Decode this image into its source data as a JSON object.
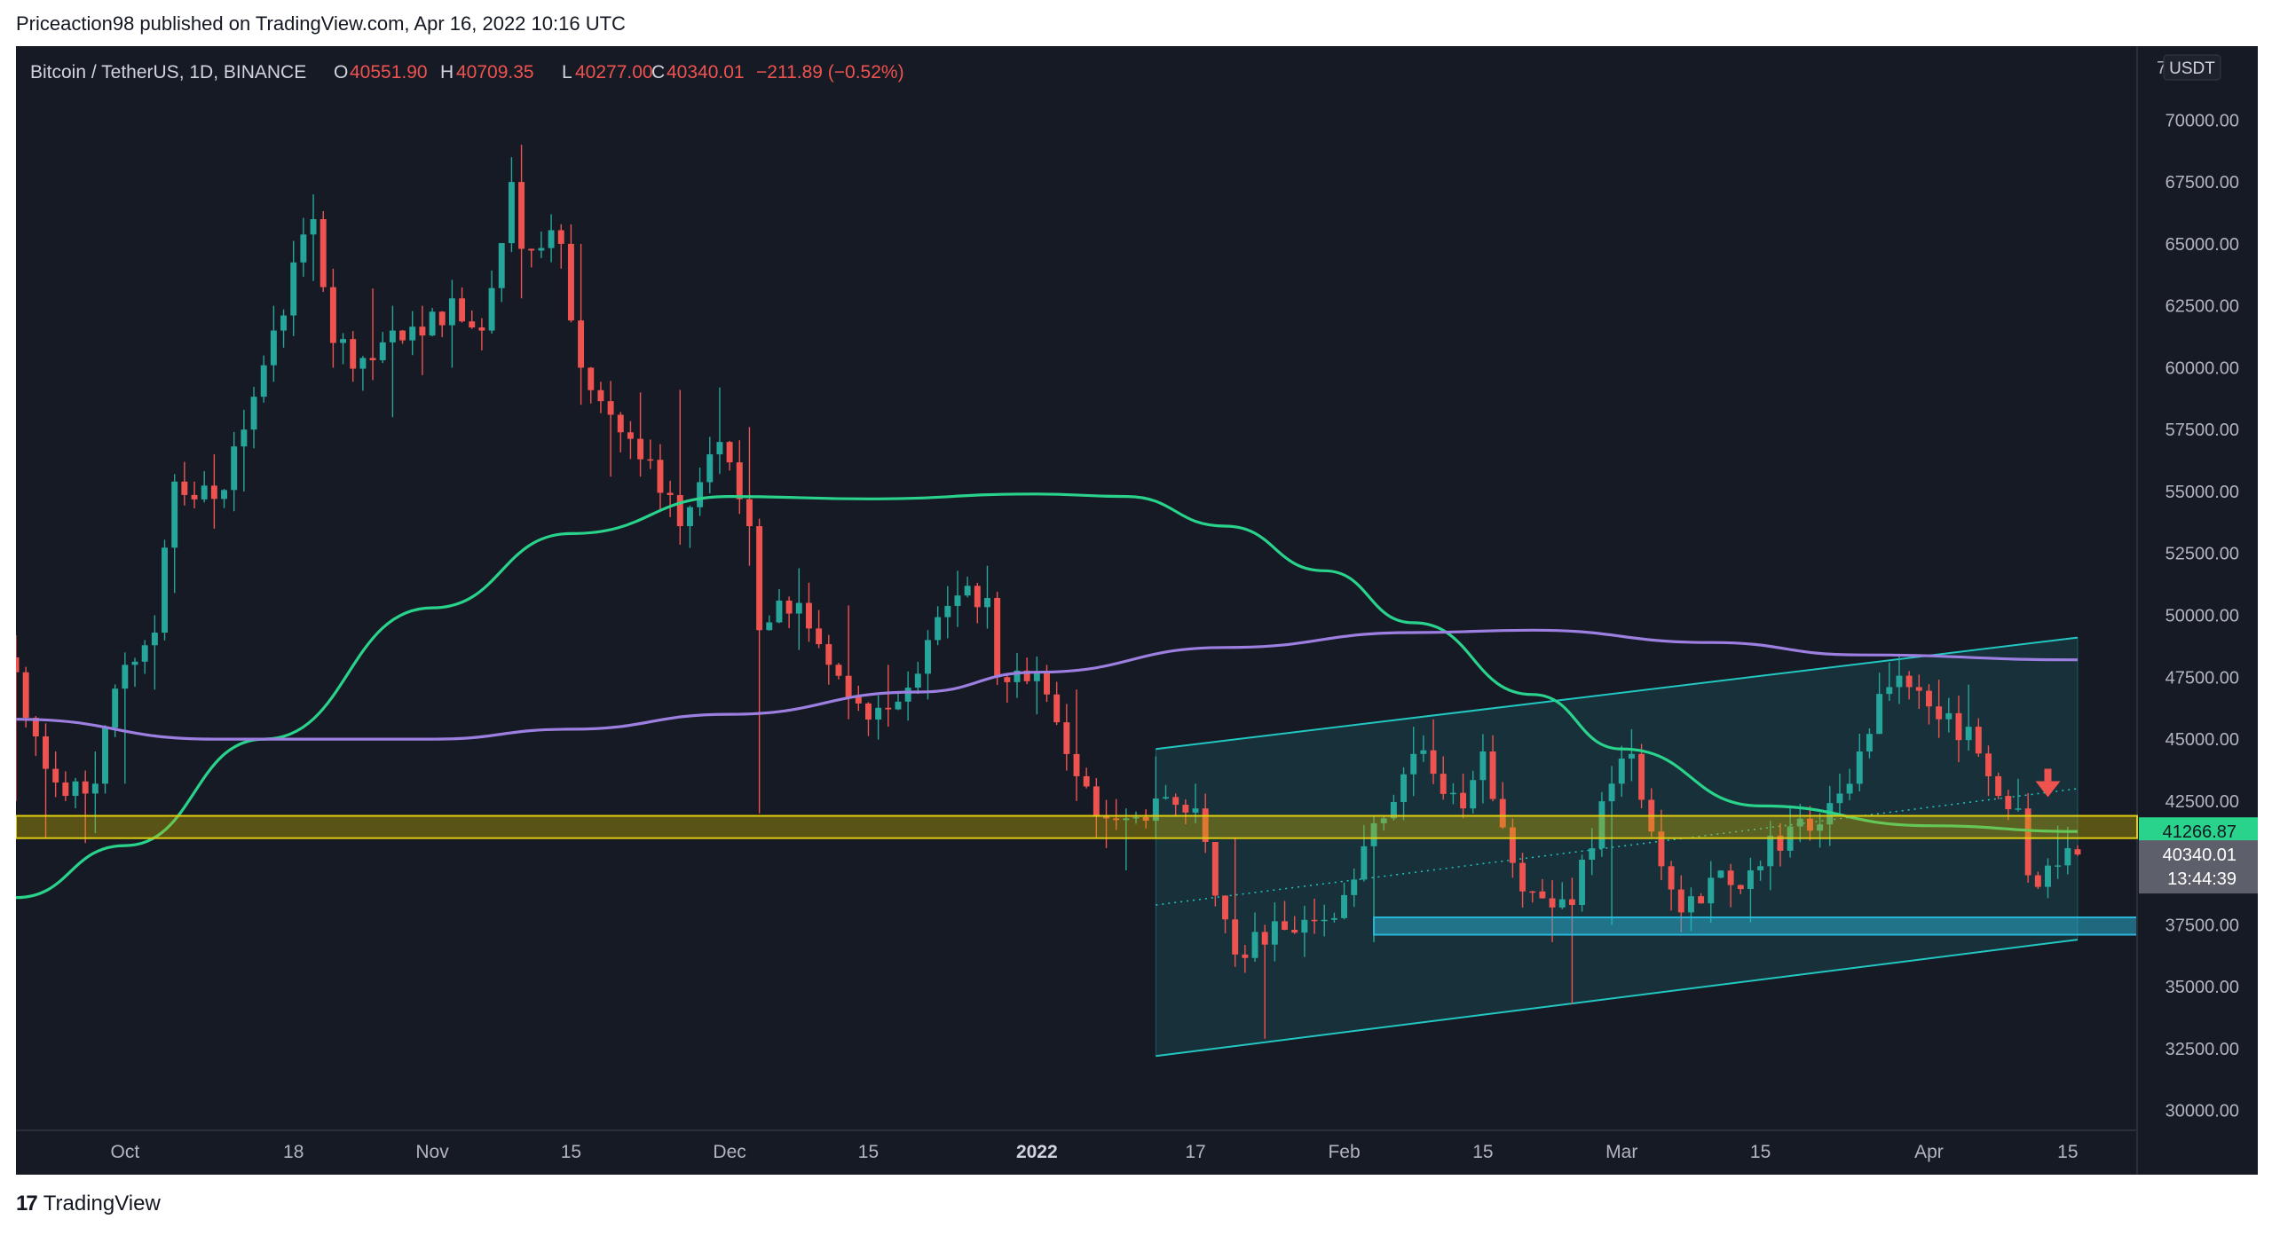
{
  "publisher_line": "Priceaction98 published on TradingView.com, Apr 16, 2022 10:16 UTC",
  "footer": {
    "logo_mark": "17",
    "brand": "TradingView"
  },
  "legend": {
    "symbol": "Bitcoin / TetherUS, 1D, BINANCE",
    "open_label": "O",
    "open": "40551.90",
    "high_label": "H",
    "high": "40709.35",
    "low_label": "L",
    "low": "40277.00",
    "close_label": "C",
    "close": "40340.01",
    "change": "−211.89 (−0.52%)"
  },
  "currency_badge": "USDT",
  "price_labels": {
    "ma_value": "41266.87",
    "last_price": "40340.01",
    "countdown": "13:44:39"
  },
  "colors": {
    "background": "#161a25",
    "up": "#26a69a",
    "down": "#ef5350",
    "ma_green": "#2ad38b",
    "ma_purple": "#9c7fe0",
    "zone_yellow": "#c8b400",
    "zone_blue": "#29b6d8",
    "channel": "#21c7c0",
    "text": "#b2b5be"
  },
  "chart_data": {
    "type": "candlestick",
    "symbol": "Bitcoin / TetherUS",
    "interval": "1D",
    "exchange": "BINANCE",
    "y_axis_ticks": [
      30000,
      32500,
      35000,
      37500,
      40000,
      42500,
      45000,
      47500,
      50000,
      52500,
      55000,
      57500,
      60000,
      62500,
      65000,
      67500,
      70000
    ],
    "y_axis_tick_labels": [
      "30000.00",
      "32500.00",
      "35000.00",
      "37500.00",
      "42500.00",
      "45000.00",
      "47500.00",
      "50000.00",
      "52500.00",
      "55000.00",
      "57500.00",
      "60000.00",
      "62500.00",
      "65000.00",
      "67500.00",
      "70000.00"
    ],
    "y_axis_top_label": "70",
    "ylim": [
      29200,
      72700
    ],
    "xlim": [
      "2021-09-20",
      "2022-04-22"
    ],
    "x_axis_ticks": [
      {
        "label": "Oct",
        "date": "2021-10-01",
        "bold": false
      },
      {
        "label": "18",
        "date": "2021-10-18",
        "bold": false
      },
      {
        "label": "Nov",
        "date": "2021-11-01",
        "bold": false
      },
      {
        "label": "15",
        "date": "2021-11-15",
        "bold": false
      },
      {
        "label": "Dec",
        "date": "2021-12-01",
        "bold": false
      },
      {
        "label": "15",
        "date": "2021-12-15",
        "bold": false
      },
      {
        "label": "2022",
        "date": "2022-01-01",
        "bold": true
      },
      {
        "label": "17",
        "date": "2022-01-17",
        "bold": false
      },
      {
        "label": "Feb",
        "date": "2022-02-01",
        "bold": false
      },
      {
        "label": "15",
        "date": "2022-02-15",
        "bold": false
      },
      {
        "label": "Mar",
        "date": "2022-03-01",
        "bold": false
      },
      {
        "label": "15",
        "date": "2022-03-15",
        "bold": false
      },
      {
        "label": "Apr",
        "date": "2022-04-01",
        "bold": false
      },
      {
        "label": "15",
        "date": "2022-04-15",
        "bold": false
      }
    ],
    "keypoints": [
      [
        "2021-09-20",
        47700,
        49200,
        42500
      ],
      [
        "2021-09-23",
        43800,
        45000,
        41000
      ],
      [
        "2021-09-27",
        42800,
        43500,
        40800
      ],
      [
        "2021-09-28",
        43200,
        44500,
        41200
      ],
      [
        "2021-10-01",
        48000,
        48500,
        43200
      ],
      [
        "2021-10-04",
        49300,
        50000,
        47000
      ],
      [
        "2021-10-06",
        55400,
        55700,
        50900
      ],
      [
        "2021-10-10",
        54700,
        56500,
        53500
      ],
      [
        "2021-10-13",
        57500,
        58300,
        55000
      ],
      [
        "2021-10-16",
        61500,
        62500,
        59500
      ],
      [
        "2021-10-20",
        66000,
        67000,
        63500
      ],
      [
        "2021-10-22",
        61000,
        64000,
        60000
      ],
      [
        "2021-10-26",
        60300,
        63200,
        59500
      ],
      [
        "2021-10-28",
        61500,
        62500,
        58000
      ],
      [
        "2021-10-31",
        61300,
        62500,
        59700
      ],
      [
        "2021-11-03",
        62800,
        63500,
        60000
      ],
      [
        "2021-11-06",
        61500,
        62000,
        60700
      ],
      [
        "2021-11-09",
        67500,
        68500,
        66000
      ],
      [
        "2021-11-10",
        64800,
        69000,
        62800
      ],
      [
        "2021-11-14",
        65000,
        65500,
        64000
      ],
      [
        "2021-11-16",
        60000,
        65000,
        58500
      ],
      [
        "2021-11-19",
        58100,
        58800,
        55600
      ],
      [
        "2021-11-22",
        56300,
        59000,
        55600
      ],
      [
        "2021-11-26",
        53600,
        59100,
        53300
      ],
      [
        "2021-11-30",
        57000,
        59200,
        55900
      ],
      [
        "2021-12-03",
        53600,
        57600,
        52000
      ],
      [
        "2021-12-04",
        49400,
        53900,
        42000
      ],
      [
        "2021-12-08",
        50500,
        51900,
        48600
      ],
      [
        "2021-12-13",
        46700,
        50400,
        45800
      ],
      [
        "2021-12-17",
        46200,
        48000,
        45500
      ],
      [
        "2021-12-21",
        49000,
        49400,
        46600
      ],
      [
        "2021-12-24",
        50800,
        51800,
        50400
      ],
      [
        "2021-12-27",
        50700,
        52000,
        50500
      ],
      [
        "2021-12-28",
        47500,
        50700,
        47300
      ],
      [
        "2022-01-01",
        47700,
        47900,
        46000
      ],
      [
        "2022-01-05",
        43500,
        47000,
        42500
      ],
      [
        "2022-01-08",
        41800,
        42300,
        40600
      ],
      [
        "2022-01-10",
        41800,
        42200,
        39700
      ],
      [
        "2022-01-13",
        42600,
        44300,
        42300
      ],
      [
        "2022-01-17",
        42200,
        43200,
        41600
      ],
      [
        "2022-01-21",
        36300,
        41000,
        35800
      ],
      [
        "2022-01-24",
        36700,
        37500,
        32900
      ],
      [
        "2022-01-28",
        37700,
        38000,
        36200
      ],
      [
        "2022-02-01",
        38700,
        39200,
        38000
      ],
      [
        "2022-02-04",
        41600,
        41700,
        36800
      ],
      [
        "2022-02-08",
        44400,
        45500,
        42700
      ],
      [
        "2022-02-10",
        43600,
        45800,
        43200
      ],
      [
        "2022-02-13",
        42200,
        42700,
        41800
      ],
      [
        "2022-02-15",
        44500,
        44700,
        42400
      ],
      [
        "2022-02-18",
        40000,
        41000,
        39400
      ],
      [
        "2022-02-22",
        38200,
        39300,
        36800
      ],
      [
        "2022-02-24",
        38300,
        38800,
        34300
      ],
      [
        "2022-02-28",
        43200,
        43700,
        37500
      ],
      [
        "2022-03-02",
        44400,
        45400,
        43300
      ],
      [
        "2022-03-07",
        38000,
        39500,
        37200
      ],
      [
        "2022-03-10",
        39400,
        39900,
        38500
      ],
      [
        "2022-03-14",
        39700,
        39900,
        37600
      ],
      [
        "2022-03-16",
        41100,
        41700,
        38900
      ],
      [
        "2022-03-20",
        41300,
        42300,
        40900
      ],
      [
        "2022-03-23",
        42800,
        42800,
        41900
      ],
      [
        "2022-03-25",
        44500,
        45000,
        43800
      ],
      [
        "2022-03-28",
        47100,
        48100,
        46700
      ],
      [
        "2022-03-30",
        47100,
        47700,
        46600
      ],
      [
        "2022-04-02",
        45800,
        47400,
        45600
      ],
      [
        "2022-04-05",
        45500,
        47200,
        45300
      ],
      [
        "2022-04-07",
        43500,
        43900,
        42700
      ],
      [
        "2022-04-10",
        42200,
        43400,
        42100
      ],
      [
        "2022-04-11",
        39500,
        42400,
        39200
      ],
      [
        "2022-04-14",
        39900,
        41500,
        39600
      ],
      [
        "2022-04-16",
        40340,
        40709,
        40277
      ]
    ],
    "series": [
      {
        "name": "",
        "kind": "moving-average",
        "color": "#2ad38b",
        "points": [
          [
            "2021-09-20",
            38600
          ],
          [
            "2021-10-01",
            40700
          ],
          [
            "2021-10-15",
            45000
          ],
          [
            "2021-11-01",
            50300
          ],
          [
            "2021-11-15",
            53300
          ],
          [
            "2021-12-01",
            54800
          ],
          [
            "2021-12-15",
            54700
          ],
          [
            "2022-01-01",
            54900
          ],
          [
            "2022-01-10",
            54800
          ],
          [
            "2022-01-20",
            53600
          ],
          [
            "2022-01-30",
            51800
          ],
          [
            "2022-02-08",
            49700
          ],
          [
            "2022-02-20",
            46800
          ],
          [
            "2022-03-01",
            44600
          ],
          [
            "2022-03-15",
            42300
          ],
          [
            "2022-04-01",
            41500
          ],
          [
            "2022-04-16",
            41266.87
          ]
        ]
      },
      {
        "name": "",
        "kind": "moving-average",
        "color": "#9c7fe0",
        "points": [
          [
            "2021-09-20",
            45800
          ],
          [
            "2021-10-10",
            45000
          ],
          [
            "2021-11-01",
            45000
          ],
          [
            "2021-11-15",
            45400
          ],
          [
            "2021-12-01",
            46000
          ],
          [
            "2021-12-20",
            46900
          ],
          [
            "2022-01-01",
            47700
          ],
          [
            "2022-01-20",
            48700
          ],
          [
            "2022-02-08",
            49300
          ],
          [
            "2022-02-20",
            49400
          ],
          [
            "2022-03-10",
            48900
          ],
          [
            "2022-03-25",
            48400
          ],
          [
            "2022-04-16",
            48200
          ]
        ]
      }
    ],
    "annotations": {
      "resistance_zone": [
        41000,
        41900
      ],
      "support_zone": [
        37100,
        37800
      ],
      "channel": {
        "upper": [
          [
            "2022-01-13",
            44600
          ],
          [
            "2022-04-16",
            49100
          ]
        ],
        "lower": [
          [
            "2022-01-13",
            32200
          ],
          [
            "2022-04-16",
            36900
          ]
        ],
        "mid_dotted": [
          [
            "2022-01-13",
            38300
          ],
          [
            "2022-04-16",
            43000
          ]
        ]
      },
      "arrow": {
        "date": "2022-04-13",
        "price": 42800,
        "direction": "down"
      }
    }
  }
}
